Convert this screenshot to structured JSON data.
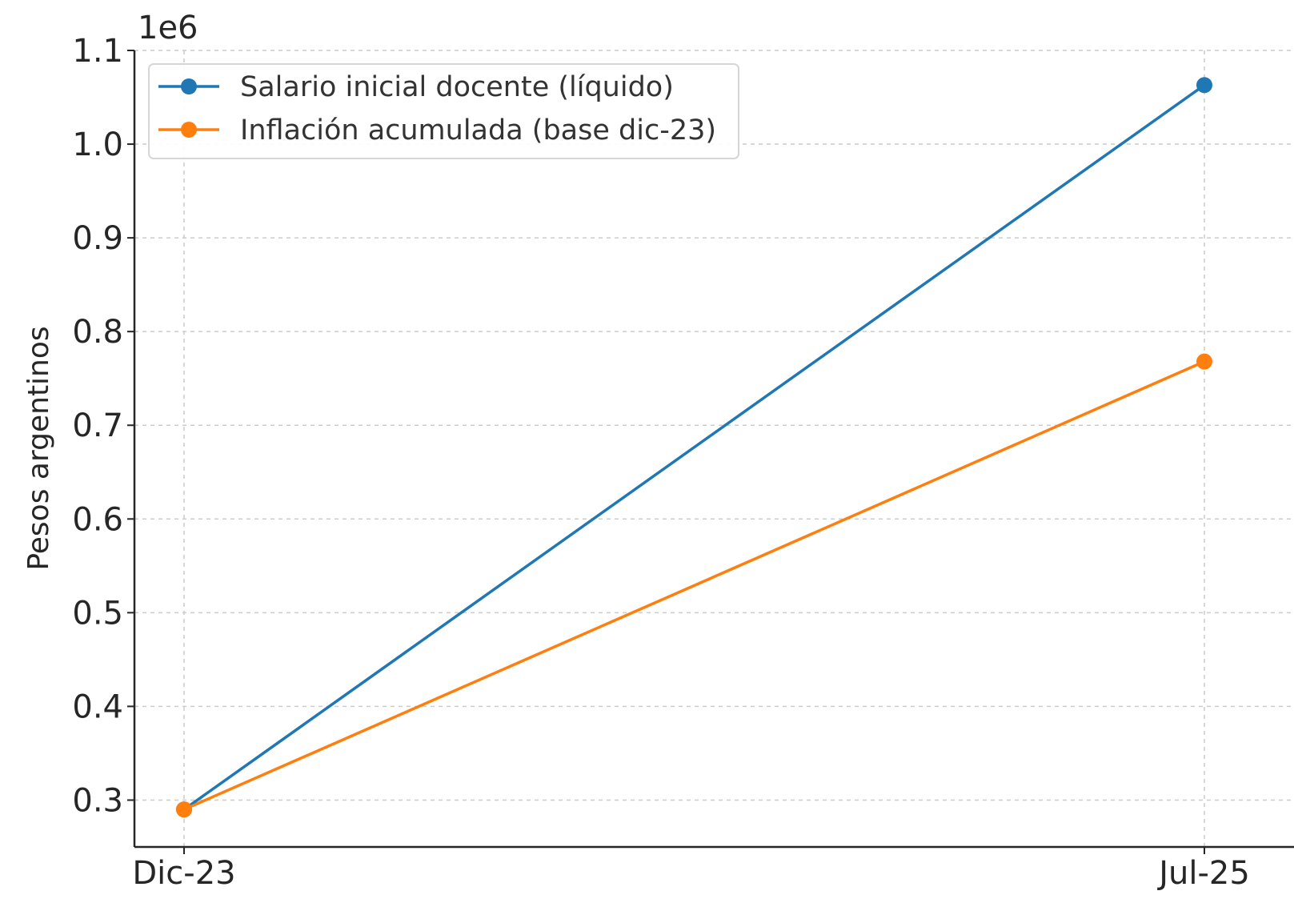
{
  "chart_data": {
    "type": "line",
    "title": "",
    "xlabel": "",
    "ylabel": "Pesos argentinos",
    "y_scale_label": "1e6",
    "categories": [
      "Dic-23",
      "Jul-25"
    ],
    "y_ticks": [
      "0.3",
      "0.4",
      "0.5",
      "0.6",
      "0.7",
      "0.8",
      "0.9",
      "1.0",
      "1.1"
    ],
    "ylim": [
      0.25,
      1.1
    ],
    "grid": true,
    "legend_position": "top-left",
    "series": [
      {
        "name": "Salario inicial docente (líquido)",
        "color": "#1f77b4",
        "values": [
          0.29,
          1.063
        ]
      },
      {
        "name": "Inflación acumulada (base dic-23)",
        "color": "#ff7f0e",
        "values": [
          0.29,
          0.768
        ]
      }
    ]
  }
}
